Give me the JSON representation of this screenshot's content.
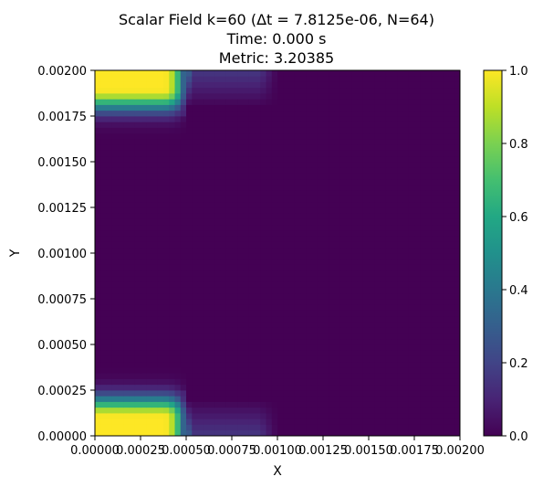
{
  "chart_data": {
    "type": "heatmap",
    "title_lines": [
      "Scalar Field k=60 (Δt = 7.8125e-06, N=64)",
      "Time: 0.000 s",
      "Metric: 3.20385"
    ],
    "xlabel": "X",
    "ylabel": "Y",
    "xlim": [
      0.0,
      0.002
    ],
    "ylim": [
      0.0,
      0.002
    ],
    "x_ticks": [
      "0.00000",
      "0.00025",
      "0.00050",
      "0.00075",
      "0.00100",
      "0.00125",
      "0.00150",
      "0.00175",
      "0.00200"
    ],
    "y_ticks": [
      "0.00000",
      "0.00025",
      "0.00050",
      "0.00075",
      "0.00100",
      "0.00125",
      "0.00150",
      "0.00175",
      "0.00200"
    ],
    "grid_n": 64,
    "colormap": "viridis",
    "colorbar": {
      "min": 0.0,
      "max": 1.0,
      "ticks": [
        "0.0",
        "0.2",
        "0.4",
        "0.6",
        "0.8",
        "1.0"
      ]
    },
    "field_description": {
      "hot_regions": [
        {
          "x_range": [
            0.0,
            0.0005
          ],
          "y_range": [
            0.00175,
            0.002
          ],
          "value": 1.0
        },
        {
          "x_range": [
            0.0,
            0.0005
          ],
          "y_range": [
            0.0,
            0.00025
          ],
          "value": 1.0
        }
      ],
      "warm_strips": [
        {
          "x_range": [
            0.0005,
            0.001
          ],
          "y_range": [
            0.0018,
            0.002
          ],
          "value": 0.15
        },
        {
          "x_range": [
            0.0005,
            0.001
          ],
          "y_range": [
            0.0,
            0.0002
          ],
          "value": 0.15
        }
      ],
      "background_value": 0.0
    }
  }
}
